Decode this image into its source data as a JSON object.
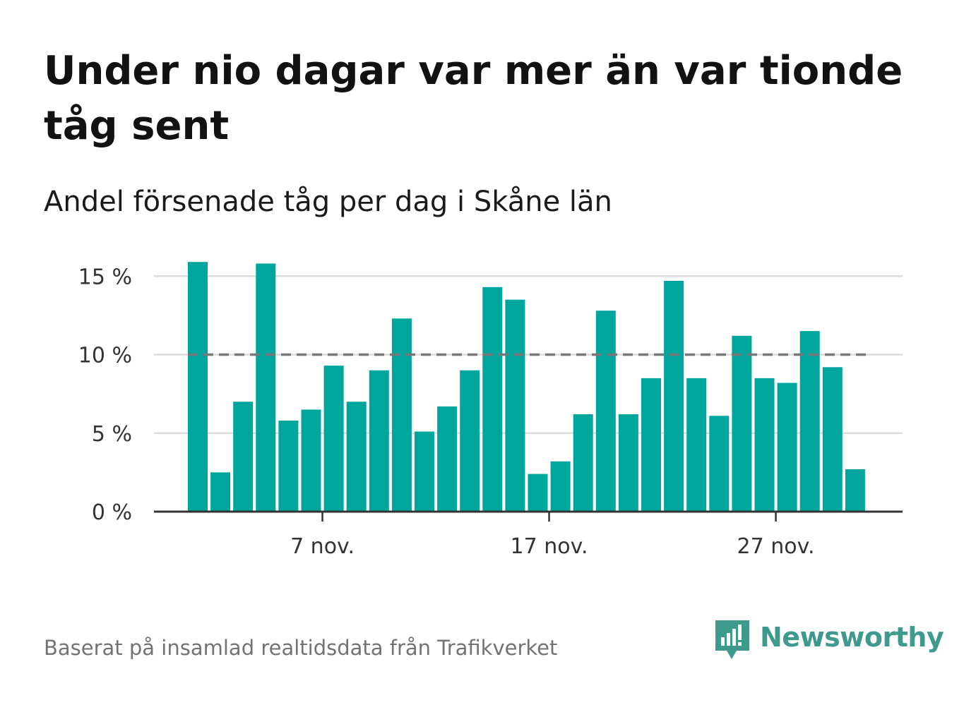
{
  "header": {
    "title": "Under nio dagar var mer än var tionde tåg sent",
    "subtitle": "Andel försenade tåg per dag i Skåne län"
  },
  "footer": {
    "source": "Baserat på insamlad realtidsdata från Trafikverket",
    "brand": "Newsworthy"
  },
  "colors": {
    "bar": "#00a69c",
    "reference_line": "#777777",
    "grid": "#dcdcdc",
    "axis": "#333333",
    "brand": "#3e9a8d"
  },
  "chart_data": {
    "type": "bar",
    "title": "",
    "xlabel": "",
    "ylabel": "",
    "ylim": [
      0,
      16
    ],
    "y_ticks": [
      {
        "value": 0,
        "label": "0 %"
      },
      {
        "value": 5,
        "label": "5 %"
      },
      {
        "value": 10,
        "label": "10 %"
      },
      {
        "value": 15,
        "label": "15 %"
      }
    ],
    "x_ticks": [
      {
        "date": "2023-11-07",
        "label": "7 nov."
      },
      {
        "date": "2023-11-17",
        "label": "17 nov."
      },
      {
        "date": "2023-11-27",
        "label": "27 nov."
      }
    ],
    "reference_line": {
      "value": 10,
      "style": "dashed"
    },
    "grid": true,
    "categories": [
      "2023-11-01",
      "2023-11-02",
      "2023-11-03",
      "2023-11-04",
      "2023-11-05",
      "2023-11-06",
      "2023-11-07",
      "2023-11-08",
      "2023-11-09",
      "2023-11-10",
      "2023-11-11",
      "2023-11-12",
      "2023-11-13",
      "2023-11-14",
      "2023-11-15",
      "2023-11-16",
      "2023-11-17",
      "2023-11-18",
      "2023-11-19",
      "2023-11-20",
      "2023-11-21",
      "2023-11-22",
      "2023-11-23",
      "2023-11-24",
      "2023-11-25",
      "2023-11-26",
      "2023-11-27",
      "2023-11-28",
      "2023-11-29",
      "2023-11-30",
      "2023-12-01"
    ],
    "values": [
      15.9,
      2.5,
      7.0,
      15.8,
      5.8,
      6.5,
      9.3,
      7.0,
      9.0,
      12.3,
      5.1,
      6.7,
      9.0,
      14.3,
      13.5,
      2.4,
      3.2,
      6.2,
      12.8,
      6.2,
      8.5,
      14.7,
      8.5,
      6.1,
      11.2,
      8.5,
      8.2,
      11.5,
      9.2,
      2.7,
      null
    ]
  }
}
